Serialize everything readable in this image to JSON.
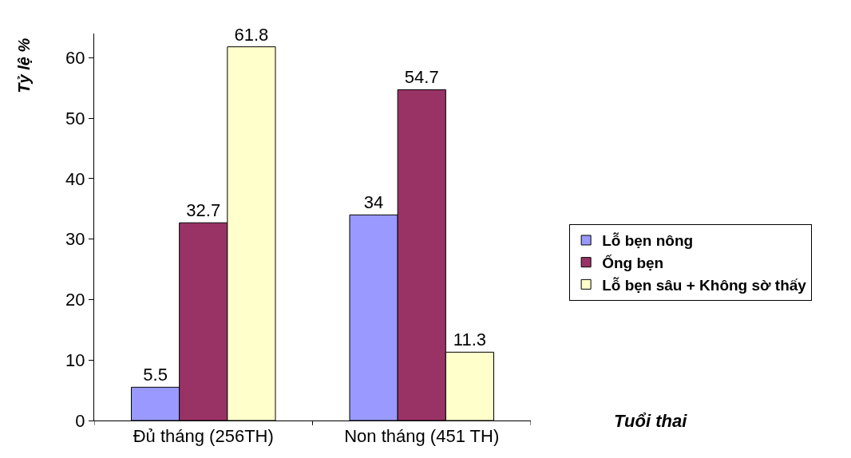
{
  "chart_data": {
    "type": "bar",
    "xlabel": "Tuổi thai",
    "ylabel": "Tỷ lệ %",
    "categories": [
      "Đủ tháng (256TH)",
      "Non tháng (451 TH)"
    ],
    "series": [
      {
        "name": "Lỗ bẹn nông",
        "color": "#9999ff",
        "values": [
          5.5,
          34
        ]
      },
      {
        "name": "Ống bẹn",
        "color": "#993366",
        "values": [
          32.7,
          54.7
        ]
      },
      {
        "name": "Lỗ bẹn sâu + Không sờ thấy",
        "color": "#ffffcc",
        "values": [
          61.8,
          11.3
        ]
      }
    ],
    "ylim": [
      0,
      64
    ],
    "yticks": [
      0,
      10,
      20,
      30,
      40,
      50,
      60
    ],
    "data_labels": true,
    "legend": "right",
    "grid": false
  }
}
